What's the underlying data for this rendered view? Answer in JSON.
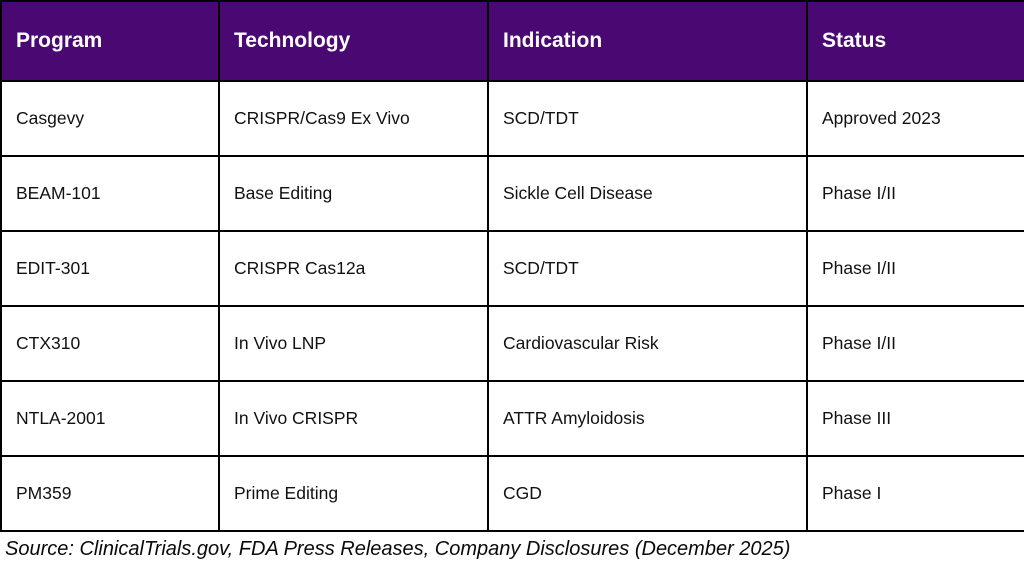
{
  "chart_data": {
    "type": "table",
    "title": "",
    "columns": [
      "Program",
      "Technology",
      "Indication",
      "Status"
    ],
    "rows": [
      [
        "Casgevy",
        "CRISPR/Cas9 Ex Vivo",
        "SCD/TDT",
        "Approved 2023"
      ],
      [
        "BEAM-101",
        "Base Editing",
        "Sickle Cell Disease",
        "Phase I/II"
      ],
      [
        "EDIT-301",
        "CRISPR Cas12a",
        "SCD/TDT",
        "Phase I/II"
      ],
      [
        "CTX310",
        "In Vivo LNP",
        "Cardiovascular Risk",
        "Phase I/II"
      ],
      [
        "NTLA-2001",
        "In Vivo CRISPR",
        "ATTR Amyloidosis",
        "Phase III"
      ],
      [
        "PM359",
        "Prime Editing",
        "CGD",
        "Phase I"
      ]
    ],
    "source_note": "Source: ClinicalTrials.gov, FDA Press Releases, Company Disclosures (December 2025)"
  },
  "colors": {
    "header_bg": "#4A0972",
    "header_text": "#FFFFFF",
    "row_bg": "#FFFFFF",
    "cell_text": "#111111",
    "border": "#000000"
  }
}
